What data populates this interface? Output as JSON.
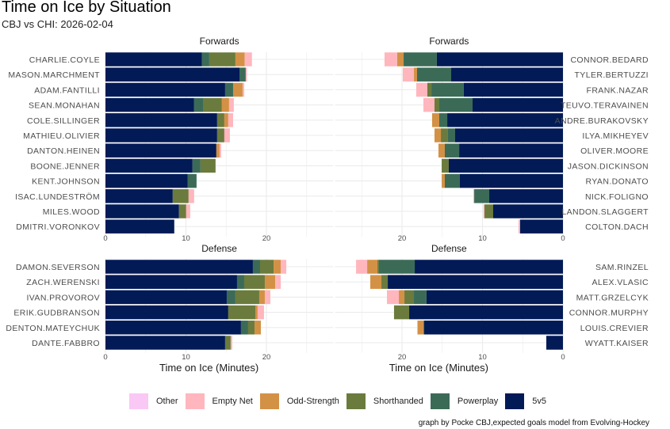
{
  "title": "Time on Ice by Situation",
  "subtitle": "CBJ vs CHI: 2026-02-04",
  "caption": "graph by Pocke CBJ,expected goals model from Evolving-Hockey",
  "colors": {
    "Other": "#f9c8f5",
    "Empty Net": "#ffb6bd",
    "Odd-Strength": "#d39146",
    "Shorthanded": "#6a7b3d",
    "Powerplay": "#3b6b57",
    "5v5": "#021a56"
  },
  "chart_data": {
    "type": "bar",
    "orientation": "horizontal-stacked",
    "xlabel": "Time on Ice (Minutes)",
    "xlim": [
      0,
      28.3
    ],
    "xticks": [
      "0",
      "10",
      "20"
    ],
    "legend_position": "bottom",
    "situations": [
      "5v5",
      "Powerplay",
      "Shorthanded",
      "Odd-Strength",
      "Empty Net",
      "Other"
    ],
    "legend": [
      "Other",
      "Empty Net",
      "Odd-Strength",
      "Shorthanded",
      "Powerplay",
      "5v5"
    ],
    "panels": [
      {
        "strip": "Forwards",
        "side": "left",
        "group": "forwards",
        "players": [
          {
            "name": "CHARLIE.COYLE",
            "values": [
              12.0,
              0.9,
              3.25,
              1.15,
              0.9,
              0
            ]
          },
          {
            "name": "MASON.MARCHMENT",
            "values": [
              16.65,
              0.78,
              0,
              0,
              0.15,
              0
            ]
          },
          {
            "name": "ADAM.FANTILLI",
            "values": [
              14.87,
              0.99,
              0,
              1.18,
              0.2,
              0
            ]
          },
          {
            "name": "SEAN.MONAHAN",
            "values": [
              11.02,
              1.18,
              2.27,
              0.89,
              0.59,
              0
            ]
          },
          {
            "name": "COLE.SILLINGER",
            "values": [
              13.88,
              0,
              0.89,
              0.49,
              0.6,
              0
            ]
          },
          {
            "name": "MATHIEU.OLIVIER",
            "values": [
              13.88,
              0,
              0.89,
              0,
              0.69,
              0
            ]
          },
          {
            "name": "DANTON.HEINEN",
            "values": [
              13.78,
              0,
              0,
              0.4,
              0.2,
              0
            ]
          },
          {
            "name": "BOONE.JENNER",
            "values": [
              10.82,
              0.99,
              1.87,
              0,
              0,
              0
            ]
          },
          {
            "name": "KENT.JOHNSON",
            "values": [
              10.23,
              1.09,
              0,
              0,
              0,
              0
            ]
          },
          {
            "name": "ISAC.LUNDESTRÖM",
            "values": [
              8.36,
              0,
              1.97,
              0,
              0.69,
              0
            ]
          },
          {
            "name": "MILES.WOOD",
            "values": [
              9.14,
              0,
              0.89,
              0,
              0.5,
              0
            ]
          },
          {
            "name": "DMITRI.VORONKOV",
            "values": [
              8.55,
              0,
              0,
              0,
              0,
              0
            ]
          }
        ]
      },
      {
        "strip": "Forwards",
        "side": "right",
        "group": "forwards",
        "players": [
          {
            "name": "CONNOR.BEDARD",
            "values": [
              15.67,
              4.13,
              0,
              0.8,
              1.57,
              0
            ]
          },
          {
            "name": "TYLER.BERTUZZI",
            "values": [
              13.89,
              4.24,
              0,
              0.39,
              1.38,
              0
            ]
          },
          {
            "name": "FRANK.NAZAR",
            "values": [
              12.32,
              4.03,
              0.5,
              0,
              1.38,
              0
            ]
          },
          {
            "name": "TEUVO.TERAVAINEN",
            "values": [
              11.23,
              4.14,
              0.59,
              0,
              1.38,
              0
            ]
          },
          {
            "name": "ANDRE.BURAKOVSKY",
            "values": [
              14.38,
              0.99,
              0,
              0.89,
              0,
              0
            ]
          },
          {
            "name": "ILYA.MIKHEYEV",
            "values": [
              13.4,
              0.89,
              0.88,
              0.79,
              0,
              0
            ]
          },
          {
            "name": "OLIVER.MOORE",
            "values": [
              12.9,
              1.78,
              0,
              0.79,
              0,
              0
            ]
          },
          {
            "name": "JASON.DICKINSON",
            "values": [
              14.19,
              0,
              0.88,
              0,
              0,
              0
            ]
          },
          {
            "name": "RYAN.DONATO",
            "values": [
              12.81,
              1.87,
              0,
              0.39,
              0,
              0
            ]
          },
          {
            "name": "NICK.FOLIGNO",
            "values": [
              9.16,
              1.87,
              0,
              0,
              0.1,
              0
            ]
          },
          {
            "name": "LANDON.SLAGGERT",
            "values": [
              8.67,
              0,
              1.08,
              0,
              0.13,
              0
            ]
          },
          {
            "name": "COLTON.DACH",
            "values": [
              5.32,
              0,
              0,
              0,
              0.2,
              0
            ]
          }
        ]
      },
      {
        "strip": "Defense",
        "side": "left",
        "group": "defense",
        "players": [
          {
            "name": "DAMON.SEVERSON",
            "values": [
              18.32,
              0.89,
              1.68,
              0.89,
              0.69,
              0
            ]
          },
          {
            "name": "ZACH.WERENSKI",
            "values": [
              16.35,
              0.89,
              2.56,
              1.29,
              0.69,
              0
            ]
          },
          {
            "name": "IVAN.PROVOROV",
            "values": [
              15.07,
              1.08,
              2.96,
              0.69,
              0.69,
              0
            ]
          },
          {
            "name": "ERIK.GUDBRANSON",
            "values": [
              15.26,
              0,
              3.36,
              0.29,
              0.79,
              0
            ]
          },
          {
            "name": "DENTON.MATEYCHUK",
            "values": [
              16.84,
              0.89,
              0.79,
              0.79,
              0,
              0
            ]
          },
          {
            "name": "DANTE.FABBRO",
            "values": [
              14.87,
              0,
              0.69,
              0,
              0.2,
              0
            ]
          }
        ]
      },
      {
        "strip": "Defense",
        "side": "right",
        "group": "defense",
        "players": [
          {
            "name": "SAM.RINZEL",
            "values": [
              18.42,
              4.44,
              0.19,
              1.28,
              1.38,
              0
            ]
          },
          {
            "name": "ALEX.VLASIC",
            "values": [
              21.77,
              0,
              0.79,
              1.38,
              0,
              0
            ]
          },
          {
            "name": "MATT.GRZELCYK",
            "values": [
              16.95,
              1.57,
              1.18,
              0.69,
              1.48,
              0
            ]
          },
          {
            "name": "CONNOR.MURPHY",
            "values": [
              19.11,
              0,
              1.88,
              0,
              0,
              0
            ]
          },
          {
            "name": "LOUIS.CREVIER",
            "values": [
              17.24,
              0,
              0.1,
              0.69,
              0.1,
              0
            ]
          },
          {
            "name": "WYATT.KAISER",
            "values": [
              2.07,
              0,
              0,
              0,
              0,
              0
            ]
          }
        ]
      }
    ]
  }
}
